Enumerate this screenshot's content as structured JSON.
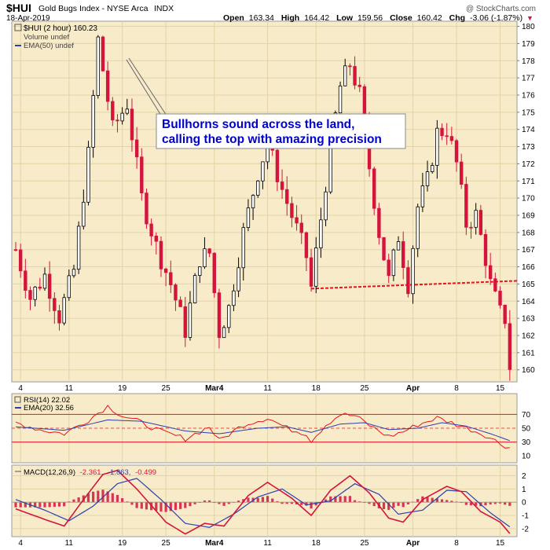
{
  "header": {
    "symbol": "$HUI",
    "name": "Gold Bugs Index - NYSE Arca",
    "exchange": "INDX",
    "date": "18-Apr-2019",
    "open_label": "Open",
    "open": "163.34",
    "high_label": "High",
    "high": "164.42",
    "low_label": "Low",
    "low": "159.56",
    "close_label": "Close",
    "close": "160.42",
    "chg_label": "Chg",
    "chg": "-3.06 (-1.87%)",
    "chg_marker": "▼",
    "credit": "@ StockCharts.com"
  },
  "legend": {
    "price": "$HUI (2 hour) 160.23",
    "volume": "Volume undef",
    "ema": "EMA(50) undef"
  },
  "annotation": {
    "line1": "Bullhorns sound across the land,",
    "line2": "calling the top with amazing precision"
  },
  "rsi": {
    "label": "RSI(14) 22.02",
    "ema_label": "EMA(20) 32.56"
  },
  "macd": {
    "label_prefix": "MACD(12,26,9)",
    "v1": "-2.361,",
    "v2": "-1.863,",
    "v3": "-0.499"
  },
  "colors": {
    "panel_bg": "#f7ebc9",
    "up_candle": "#000000",
    "down_candle": "#d4143c",
    "annotation_text": "#0000cc",
    "support_line": "#e8141c",
    "rsi_line": "#e8141c",
    "rsi_ema": "#2a3fb0",
    "macd_line": "#d4143c",
    "signal_line": "#2a3fb0",
    "histogram": "#d4143c"
  },
  "chart_data": {
    "type": "candlestick",
    "x_ticks": [
      "4",
      "11",
      "19",
      "25",
      "Mar4",
      "11",
      "18",
      "25",
      "Apr",
      "8",
      "15"
    ],
    "price_axis": {
      "ticks": [
        160,
        161,
        162,
        163,
        164,
        165,
        166,
        167,
        168,
        169,
        170,
        171,
        172,
        173,
        174,
        175,
        176,
        177,
        178,
        179,
        180
      ],
      "range": [
        159.3,
        180.3
      ]
    },
    "price_path": [
      [
        0,
        167.0
      ],
      [
        3,
        164.2
      ],
      [
        6,
        165.5
      ],
      [
        9,
        163.1
      ],
      [
        12,
        165.8
      ],
      [
        15,
        172.5
      ],
      [
        17,
        179.2
      ],
      [
        20,
        174.0
      ],
      [
        23,
        175.5
      ],
      [
        26,
        170.0
      ],
      [
        29,
        167.2
      ],
      [
        32,
        165.0
      ],
      [
        35,
        162.3
      ],
      [
        38,
        166.5
      ],
      [
        40,
        166.8
      ],
      [
        42,
        162.2
      ],
      [
        44,
        163.6
      ],
      [
        47,
        168.0
      ],
      [
        50,
        171.5
      ],
      [
        52,
        173.2
      ],
      [
        55,
        170.5
      ],
      [
        58,
        168.2
      ],
      [
        60,
        166.6
      ],
      [
        61,
        164.8
      ],
      [
        63,
        168.8
      ],
      [
        65,
        173.0
      ],
      [
        67,
        176.5
      ],
      [
        69,
        177.8
      ],
      [
        71,
        176.0
      ],
      [
        73,
        171.8
      ],
      [
        75,
        168.0
      ],
      [
        77,
        165.2
      ],
      [
        79,
        167.8
      ],
      [
        81,
        165.0
      ],
      [
        83,
        169.5
      ],
      [
        85,
        171.0
      ],
      [
        87,
        173.8
      ],
      [
        89,
        174.0
      ],
      [
        91,
        172.0
      ],
      [
        93,
        168.5
      ],
      [
        95,
        169.0
      ],
      [
        97,
        166.5
      ],
      [
        98,
        165.0
      ],
      [
        100,
        163.3
      ],
      [
        101,
        163.0
      ],
      [
        102,
        160.2
      ]
    ],
    "support_line": {
      "value": 165.0
    },
    "rsi_axis": {
      "ticks": [
        10,
        30,
        50,
        70
      ],
      "range": [
        0,
        100
      ],
      "bands": [
        30,
        70
      ],
      "midline": 50
    },
    "rsi_path": [
      [
        0,
        58
      ],
      [
        5,
        48
      ],
      [
        10,
        42
      ],
      [
        15,
        62
      ],
      [
        19,
        82
      ],
      [
        22,
        68
      ],
      [
        26,
        58
      ],
      [
        30,
        45
      ],
      [
        35,
        35
      ],
      [
        40,
        52
      ],
      [
        42,
        32
      ],
      [
        47,
        55
      ],
      [
        52,
        65
      ],
      [
        56,
        50
      ],
      [
        60,
        42
      ],
      [
        61,
        32
      ],
      [
        64,
        55
      ],
      [
        67,
        70
      ],
      [
        70,
        68
      ],
      [
        74,
        50
      ],
      [
        77,
        38
      ],
      [
        80,
        45
      ],
      [
        83,
        55
      ],
      [
        87,
        65
      ],
      [
        90,
        58
      ],
      [
        94,
        48
      ],
      [
        97,
        40
      ],
      [
        100,
        28
      ],
      [
        102,
        22
      ]
    ],
    "rsi_ema_path": [
      [
        0,
        52
      ],
      [
        10,
        47
      ],
      [
        19,
        62
      ],
      [
        26,
        60
      ],
      [
        35,
        46
      ],
      [
        42,
        42
      ],
      [
        50,
        50
      ],
      [
        56,
        52
      ],
      [
        61,
        44
      ],
      [
        67,
        56
      ],
      [
        72,
        58
      ],
      [
        77,
        48
      ],
      [
        83,
        50
      ],
      [
        88,
        58
      ],
      [
        93,
        53
      ],
      [
        98,
        42
      ],
      [
        102,
        32
      ]
    ],
    "macd_axis": {
      "ticks": [
        -2,
        -1,
        0,
        1,
        2
      ],
      "range": [
        -2.6,
        2.8
      ]
    },
    "macd_path": [
      [
        0,
        -0.5
      ],
      [
        6,
        -1.3
      ],
      [
        10,
        -1.8
      ],
      [
        14,
        0.2
      ],
      [
        18,
        2.1
      ],
      [
        21,
        2.4
      ],
      [
        25,
        1.0
      ],
      [
        31,
        -1.5
      ],
      [
        35,
        -2.4
      ],
      [
        39,
        -1.6
      ],
      [
        43,
        -1.8
      ],
      [
        48,
        0.5
      ],
      [
        52,
        1.5
      ],
      [
        57,
        0.3
      ],
      [
        61,
        -1.0
      ],
      [
        65,
        0.9
      ],
      [
        69,
        2.0
      ],
      [
        73,
        0.7
      ],
      [
        77,
        -1.2
      ],
      [
        80,
        -1.5
      ],
      [
        84,
        0.2
      ],
      [
        89,
        1.2
      ],
      [
        92,
        0.8
      ],
      [
        96,
        -0.7
      ],
      [
        100,
        -1.5
      ],
      [
        102,
        -2.36
      ]
    ],
    "signal_path": [
      [
        0,
        0.2
      ],
      [
        6,
        -0.6
      ],
      [
        11,
        -1.4
      ],
      [
        16,
        -0.3
      ],
      [
        21,
        1.4
      ],
      [
        25,
        1.8
      ],
      [
        30,
        0.2
      ],
      [
        35,
        -1.6
      ],
      [
        40,
        -1.9
      ],
      [
        45,
        -0.9
      ],
      [
        50,
        0.4
      ],
      [
        55,
        1.0
      ],
      [
        60,
        -0.2
      ],
      [
        65,
        0.1
      ],
      [
        70,
        1.4
      ],
      [
        75,
        0.6
      ],
      [
        79,
        -0.9
      ],
      [
        84,
        -0.6
      ],
      [
        89,
        0.9
      ],
      [
        93,
        0.8
      ],
      [
        98,
        -0.8
      ],
      [
        102,
        -1.86
      ]
    ],
    "macd_histogram_last": -0.499
  }
}
